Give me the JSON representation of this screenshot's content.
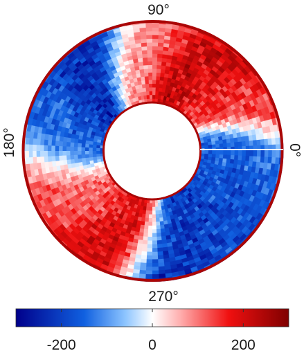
{
  "chart_data": {
    "type": "heatmap",
    "projection": "annulus",
    "angle_labels": {
      "top": "90°",
      "left": "180°",
      "bottom": "270°",
      "right": "0°"
    },
    "colorbar": {
      "colormap": "blue-white-red",
      "range": [
        -300,
        300
      ],
      "ticks": [
        -200,
        0,
        200
      ],
      "tick_labels": [
        "-200",
        "0",
        "200"
      ],
      "colors": {
        "low": "#00008b",
        "mid": "#ffffff",
        "high": "#7f0000"
      }
    },
    "field_pattern": [
      {
        "angle_deg": 0,
        "value": -150
      },
      {
        "angle_deg": 30,
        "value": 150
      },
      {
        "angle_deg": 65,
        "value": 220
      },
      {
        "angle_deg": 100,
        "value": 80
      },
      {
        "angle_deg": 130,
        "value": -230
      },
      {
        "angle_deg": 165,
        "value": -160
      },
      {
        "angle_deg": 210,
        "value": 120
      },
      {
        "angle_deg": 250,
        "value": 200
      },
      {
        "angle_deg": 285,
        "value": -220
      },
      {
        "angle_deg": 330,
        "value": -180
      }
    ],
    "outer_rim_value": 250,
    "inner_rim_value": 250,
    "grid": false,
    "legend": "bottom"
  }
}
